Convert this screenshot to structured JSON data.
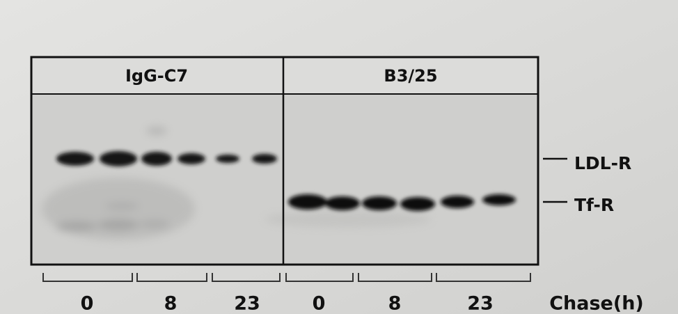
{
  "panels": [
    {
      "label": "IgG-C7"
    },
    {
      "label": "B3/25"
    }
  ],
  "markers": [
    {
      "label": "LDL-R"
    },
    {
      "label": "Tf-R"
    }
  ],
  "chase": {
    "groups": [
      "0",
      "8",
      "23",
      "0",
      "8",
      "23"
    ],
    "label": "Chase(h)"
  }
}
